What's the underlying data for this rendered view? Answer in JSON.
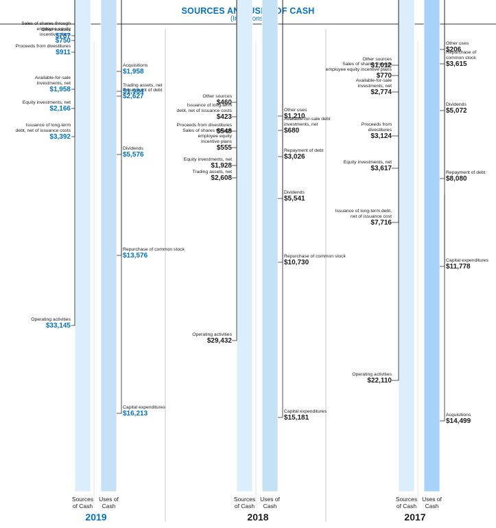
{
  "title": "SOURCES AND USES OF CASH",
  "subtitle": "(In Millions)",
  "column_labels": {
    "sources": [
      "Sources",
      "of Cash"
    ],
    "uses": [
      "Uses of",
      "Cash"
    ]
  },
  "colors": {
    "shade1": "#dceefb",
    "shade2": "#c5e1f6",
    "shade3": "#a6d3f7",
    "shade4": "#8bbde9",
    "shade5": "#6aa7f2",
    "shade6": "#4589e2",
    "shade7": "#0b6fc7",
    "shade8": "#1c4797",
    "accent": "#0071c5",
    "text": "#1a1a1a",
    "divider": "#c7c7c7"
  },
  "chart_data": [
    {
      "type": "stacked-bar",
      "year": "2019",
      "highlight": true,
      "sources": [
        {
          "label": "Operating activities",
          "value": 33145,
          "display": "$33,145",
          "color": "shade1"
        },
        {
          "label": "Issuance of long-term debt, net of issuance costs",
          "value": 3392,
          "display": "$3,392",
          "color": "shade3"
        },
        {
          "label": "Equity investments, net",
          "value": 2166,
          "display": "$2,166",
          "color": "shade4"
        },
        {
          "label": "Available-for-sale investments, net",
          "value": 1958,
          "display": "$1,958",
          "color": "shade7"
        },
        {
          "label": "Proceeds from divestitures",
          "value": 911,
          "display": "$911",
          "color": "shade6"
        },
        {
          "label": "Sales of shares through employee equity incentive plans",
          "value": 750,
          "display": "$750",
          "color": "shade5"
        },
        {
          "label": "Other sources",
          "value": 787,
          "display": "$787",
          "color": "shade8"
        }
      ],
      "uses": [
        {
          "label": "Capital expenditures",
          "value": 16213,
          "display": "$16,213",
          "color": "shade2"
        },
        {
          "label": "Repurchase of common stock",
          "value": 13576,
          "display": "$13,576",
          "color": "shade4"
        },
        {
          "label": "Dividends",
          "value": 5576,
          "display": "$5,576",
          "color": "shade5"
        },
        {
          "label": "Repayment of debt",
          "value": 2627,
          "display": "$2,627",
          "color": "shade6"
        },
        {
          "label": "Trading assets, net",
          "value": 1984,
          "display": "$1,984",
          "color": "shade2"
        },
        {
          "label": "Acquisitions",
          "value": 1958,
          "display": "$1,958",
          "color": "shade3"
        }
      ]
    },
    {
      "type": "stacked-bar",
      "year": "2018",
      "highlight": false,
      "sources": [
        {
          "label": "Operating activities",
          "value": 29432,
          "display": "$29,432",
          "color": "shade1"
        },
        {
          "label": "Trading assets, net",
          "value": 2608,
          "display": "$2,608",
          "color": "shade2"
        },
        {
          "label": "Equity investments, net",
          "value": 1928,
          "display": "$1,928",
          "color": "shade4"
        },
        {
          "label": "Sales of shares through employee equity incentive plans",
          "value": 555,
          "display": "$555",
          "color": "shade7"
        },
        {
          "label": "Proceeds from divestitures",
          "value": 548,
          "display": "$548",
          "color": "shade5"
        },
        {
          "label": "Issuance of long-term debt, net of issuance costs",
          "value": 423,
          "display": "$423",
          "color": "shade3"
        },
        {
          "label": "Other sources",
          "value": 460,
          "display": "$460",
          "color": "shade8"
        }
      ],
      "uses": [
        {
          "label": "Capital expenditures",
          "value": 15181,
          "display": "$15,181",
          "color": "shade2"
        },
        {
          "label": "Repurchase of common stock",
          "value": 10730,
          "display": "$10,730",
          "color": "shade4"
        },
        {
          "label": "Dividends",
          "value": 5541,
          "display": "$5,541",
          "color": "shade5"
        },
        {
          "label": "Repayment of debt",
          "value": 3026,
          "display": "$3,026",
          "color": "shade6"
        },
        {
          "label": "Available-for-sale debt investments, net",
          "value": 680,
          "display": "$680",
          "color": "shade7"
        },
        {
          "label": "Other uses",
          "value": 1210,
          "display": "$1,210",
          "color": "shade8"
        }
      ]
    },
    {
      "type": "stacked-bar",
      "year": "2017",
      "highlight": false,
      "sources": [
        {
          "label": "Operating activities",
          "value": 22110,
          "display": "$22,110",
          "color": "shade1"
        },
        {
          "label": "Issuance of long-term debt, net of issuance cost",
          "value": 7716,
          "display": "$7,716",
          "color": "shade2"
        },
        {
          "label": "Equity investments, net",
          "value": 3617,
          "display": "$3,617",
          "color": "shade4"
        },
        {
          "label": "Proceeds from divestitures",
          "value": 3124,
          "display": "$3,124",
          "color": "shade5"
        },
        {
          "label": "Available-for-sale investments, net",
          "value": 2774,
          "display": "$2,774",
          "color": "shade6"
        },
        {
          "label": "Sales of shares through employee equity incentive plans",
          "value": 770,
          "display": "$770",
          "color": "shade7"
        },
        {
          "label": "Other sources",
          "value": 1012,
          "display": "$1,012",
          "color": "shade8"
        }
      ],
      "uses": [
        {
          "label": "Acquisitions",
          "value": 14499,
          "display": "$14,499",
          "color": "shade3"
        },
        {
          "label": "Capital expenditures",
          "value": 11778,
          "display": "$11,778",
          "color": "shade2"
        },
        {
          "label": "Repayment of debt",
          "value": 8080,
          "display": "$8,080",
          "color": "shade6"
        },
        {
          "label": "Dividends",
          "value": 5072,
          "display": "$5,072",
          "color": "shade5"
        },
        {
          "label": "Repurchase of common stock",
          "value": 3615,
          "display": "$3,615",
          "color": "shade4"
        },
        {
          "label": "Other uses",
          "value": 206,
          "display": "$206",
          "color": "shade8"
        }
      ]
    }
  ]
}
